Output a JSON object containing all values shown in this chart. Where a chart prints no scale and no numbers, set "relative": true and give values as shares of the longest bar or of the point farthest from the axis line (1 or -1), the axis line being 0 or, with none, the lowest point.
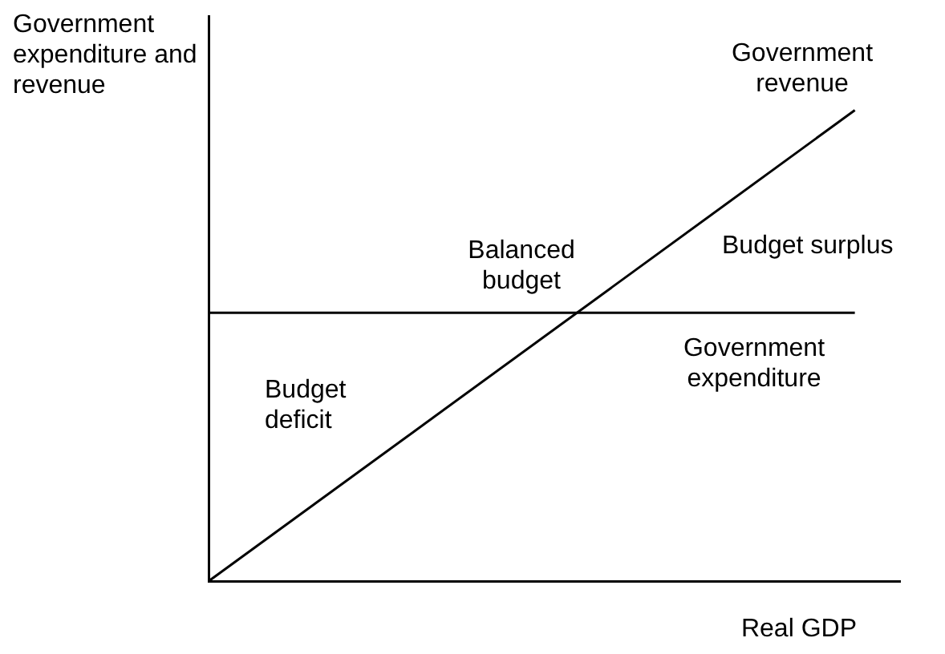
{
  "chart_data": {
    "type": "line",
    "relative": true,
    "xlabel": "Real GDP",
    "ylabel": "Government expenditure and revenue",
    "categories": [
      null,
      null
    ],
    "series": [
      {
        "name": "Government revenue",
        "color": "#000000",
        "values": [
          0,
          1
        ]
      },
      {
        "name": "Government expenditure",
        "color": "#000000",
        "values": [
          0.57,
          0.57
        ]
      }
    ],
    "annotations": [
      "Balanced budget",
      "Budget surplus",
      "Budget deficit"
    ],
    "marker": "none",
    "line_style": "solid",
    "grid": false,
    "legend": false
  }
}
